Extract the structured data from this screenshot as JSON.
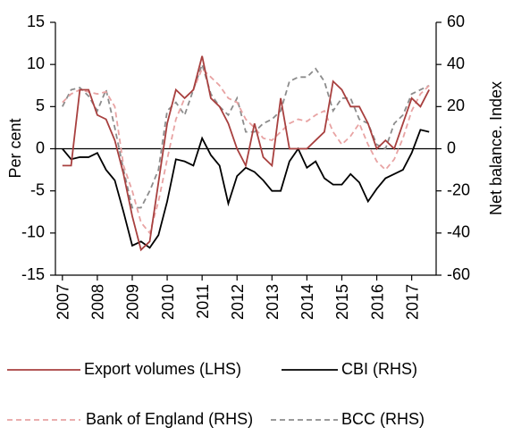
{
  "chart_data": {
    "type": "line",
    "y_label": "Per cent",
    "y2_label": "Net balance. Index",
    "x": [
      2007,
      2007.25,
      2007.5,
      2007.75,
      2008,
      2008.25,
      2008.5,
      2008.75,
      2009,
      2009.25,
      2009.5,
      2009.75,
      2010,
      2010.25,
      2010.5,
      2010.75,
      2011,
      2011.25,
      2011.5,
      2011.75,
      2012,
      2012.25,
      2012.5,
      2012.75,
      2013,
      2013.25,
      2013.5,
      2013.75,
      2014,
      2014.25,
      2014.5,
      2014.75,
      2015,
      2015.25,
      2015.5,
      2015.75,
      2016,
      2016.25,
      2016.5,
      2016.75,
      2017,
      2017.25,
      2017.5
    ],
    "xlim": [
      2006.8,
      2017.7
    ],
    "xticks": [
      2007,
      2008,
      2009,
      2010,
      2011,
      2012,
      2013,
      2014,
      2015,
      2016,
      2017
    ],
    "ylim": [
      -15,
      15
    ],
    "yticks": [
      -15,
      -10,
      -5,
      0,
      5,
      10,
      15
    ],
    "y2lim": [
      -60,
      60
    ],
    "y2ticks": [
      -60,
      -40,
      -20,
      0,
      20,
      40,
      60
    ],
    "series": [
      {
        "name": "Export volumes (LHS)",
        "color": "#a8403f",
        "dash": false,
        "values": [
          -2,
          -2,
          7,
          7,
          4,
          3.5,
          1,
          -3,
          -8,
          -12,
          -11,
          -4,
          3,
          7,
          6,
          7,
          11,
          6,
          5,
          3,
          0,
          -2,
          3,
          -1,
          -2,
          6,
          0,
          0,
          0,
          1,
          2,
          8,
          7,
          5,
          5,
          3,
          0,
          1,
          0,
          3,
          6,
          5,
          7
        ]
      },
      {
        "name": "CBI (RHS)",
        "color": "#000000",
        "dash": false,
        "axis": "y2",
        "values": [
          0,
          -5,
          -4,
          -4,
          -2,
          -10,
          -15,
          -30,
          -46,
          -44,
          -47,
          -41,
          -25,
          -5,
          -6,
          -8,
          5,
          -3,
          -8,
          -26,
          -13,
          -9,
          -11,
          -15,
          -20,
          -20,
          -6,
          0,
          -9,
          -6,
          -14,
          -17,
          -17,
          -12,
          -16,
          -25,
          -19,
          -14,
          -12,
          -10,
          -2,
          9,
          8
        ]
      },
      {
        "name": "Bank of England (RHS)",
        "color": "#e8a3a3",
        "dash": true,
        "axis": "y2",
        "values": [
          22,
          26,
          28,
          27,
          26,
          27,
          20,
          -8,
          -20,
          -35,
          -40,
          -25,
          -5,
          14,
          24,
          28,
          38,
          34,
          30,
          24,
          22,
          14,
          10,
          5,
          4,
          8,
          12,
          14,
          13,
          16,
          18,
          8,
          2,
          6,
          12,
          2,
          -6,
          -10,
          -5,
          5,
          18,
          26,
          30
        ]
      },
      {
        "name": "BCC (RHS)",
        "color": "#8c8c8c",
        "dash": true,
        "axis": "y2",
        "values": [
          20,
          28,
          29,
          25,
          18,
          28,
          10,
          -10,
          -28,
          -28,
          -20,
          -10,
          18,
          22,
          16,
          28,
          40,
          26,
          20,
          16,
          24,
          8,
          8,
          12,
          14,
          18,
          32,
          34,
          34,
          38,
          32,
          18,
          24,
          24,
          14,
          12,
          2,
          0,
          12,
          16,
          26,
          28,
          30
        ]
      }
    ]
  }
}
